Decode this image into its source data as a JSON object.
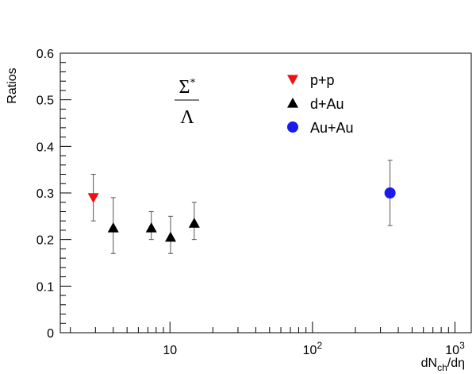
{
  "chart_data": {
    "type": "scatter",
    "ylabel": "Ratios",
    "xlabel": {
      "main": "dN",
      "sub": "ch",
      "tail": "/dη"
    },
    "x_scale": "log",
    "xlim": [
      1.7,
      1300
    ],
    "ylim": [
      0,
      0.6
    ],
    "y_ticks": [
      "0",
      "0.1",
      "0.2",
      "0.3",
      "0.4",
      "0.5",
      "0.6"
    ],
    "x_ticks": [
      {
        "value": 10,
        "base": "10",
        "exp": ""
      },
      {
        "value": 100,
        "base": "10",
        "exp": "2"
      },
      {
        "value": 1000,
        "base": "10",
        "exp": "3"
      }
    ],
    "grid": false,
    "legend_position": "top-right",
    "annotation": {
      "numerator": "Σ",
      "numerator_sup": "*",
      "denominator": "Λ"
    },
    "series": [
      {
        "name": "p+p",
        "marker": "triangle-down",
        "color": "#ee1111",
        "points": [
          {
            "x": 2.9,
            "y": 0.29,
            "yerr": [
              0.24,
              0.34
            ]
          }
        ]
      },
      {
        "name": "d+Au",
        "marker": "triangle-up",
        "color": "#000000",
        "points": [
          {
            "x": 4.0,
            "y": 0.225,
            "yerr": [
              0.17,
              0.29
            ]
          },
          {
            "x": 7.4,
            "y": 0.225,
            "yerr": [
              0.2,
              0.26
            ]
          },
          {
            "x": 10.1,
            "y": 0.205,
            "yerr": [
              0.17,
              0.25
            ]
          },
          {
            "x": 14.8,
            "y": 0.235,
            "yerr": [
              0.2,
              0.28
            ]
          }
        ]
      },
      {
        "name": "Au+Au",
        "marker": "circle",
        "color": "#1a1aee",
        "points": [
          {
            "x": 350,
            "y": 0.3,
            "yerr": [
              0.23,
              0.37
            ]
          }
        ]
      }
    ]
  }
}
